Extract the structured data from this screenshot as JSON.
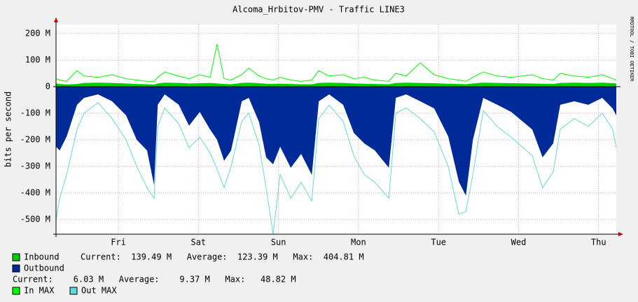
{
  "chart_data": {
    "type": "area",
    "title": "Alcoma_Hrbitov-PMV - Traffic LINE3",
    "y_label": "bits per second",
    "side_text": "RRDTOOL / TOBI OETIKER",
    "grid": true,
    "xlim": [
      0,
      168
    ],
    "xticks": [
      {
        "value": 18.7,
        "label": "Fri"
      },
      {
        "value": 42.7,
        "label": "Sat"
      },
      {
        "value": 66.7,
        "label": "Sun"
      },
      {
        "value": 90.7,
        "label": "Mon"
      },
      {
        "value": 114.7,
        "label": "Tue"
      },
      {
        "value": 138.7,
        "label": "Wed"
      },
      {
        "value": 162.7,
        "label": "Thu"
      }
    ],
    "ylim": [
      -555,
      234
    ],
    "yticks": [
      {
        "value": 200,
        "label": "200 M"
      },
      {
        "value": 100,
        "label": "100 M"
      },
      0,
      {
        "value": -100,
        "label": "-100 M"
      },
      {
        "value": -200,
        "label": "-200 M"
      },
      {
        "value": -300,
        "label": "-300 M"
      },
      {
        "value": -400,
        "label": "-400 M"
      },
      {
        "value": -500,
        "label": "-500 M"
      }
    ],
    "x": [
      0,
      1.1,
      3.2,
      6.3,
      8.4,
      12.6,
      16.8,
      21,
      24.2,
      27.3,
      29.4,
      30.5,
      32.6,
      36.8,
      39.9,
      43.1,
      46.2,
      48.3,
      50.4,
      52.5,
      55.7,
      57.8,
      60.9,
      63,
      65.1,
      67.2,
      70.4,
      73.5,
      76.7,
      78.8,
      81.9,
      86.1,
      89.3,
      92.4,
      95.6,
      99.8,
      101.9,
      105,
      109.2,
      113.4,
      117.6,
      120.8,
      122.9,
      125,
      128.1,
      132.3,
      136.5,
      142.8,
      145.9,
      149.1,
      151.2,
      155.4,
      159.6,
      163.8,
      166.9,
      168
    ],
    "series": [
      {
        "name": "Inbound",
        "style": "area",
        "color": "#00cc00",
        "values": [
          12,
          10,
          8,
          10,
          14,
          15,
          14,
          12,
          10,
          9,
          8,
          12,
          15,
          14,
          12,
          13,
          14,
          12,
          10,
          9,
          14,
          15,
          13,
          11,
          10,
          11,
          10,
          9,
          9,
          14,
          15,
          14,
          12,
          11,
          10,
          9,
          14,
          15,
          14,
          13,
          11,
          10,
          9,
          12,
          15,
          14,
          13,
          12,
          11,
          10,
          14,
          15,
          14,
          15,
          13,
          12
        ]
      },
      {
        "name": "Outbound",
        "style": "area",
        "color": "#002a97",
        "values": [
          -226,
          -240,
          -187,
          -68,
          -42,
          -29,
          -55,
          -108,
          -200,
          -240,
          -371,
          -68,
          -29,
          -68,
          -147,
          -95,
          -161,
          -200,
          -279,
          -240,
          -55,
          -42,
          -134,
          -266,
          -292,
          -226,
          -305,
          -253,
          -332,
          -55,
          -29,
          -68,
          -174,
          -213,
          -240,
          -305,
          -42,
          -29,
          -55,
          -82,
          -187,
          -358,
          -410,
          -200,
          -42,
          -68,
          -95,
          -161,
          -266,
          -213,
          -68,
          -55,
          -68,
          -42,
          -82,
          -108
        ]
      },
      {
        "name": "In MAX",
        "style": "line",
        "color": "#00ff00",
        "values": [
          30,
          25,
          20,
          60,
          40,
          35,
          45,
          30,
          25,
          20,
          20,
          35,
          55,
          40,
          30,
          45,
          35,
          160,
          30,
          25,
          45,
          70,
          40,
          30,
          25,
          35,
          25,
          20,
          25,
          60,
          40,
          45,
          30,
          35,
          25,
          20,
          50,
          40,
          90,
          45,
          30,
          25,
          20,
          35,
          55,
          40,
          35,
          45,
          30,
          25,
          50,
          40,
          35,
          45,
          30,
          25
        ]
      },
      {
        "name": "Out MAX",
        "style": "line",
        "color": "#66d9d9",
        "values": [
          -500,
          -420,
          -330,
          -160,
          -100,
          -60,
          -120,
          -200,
          -300,
          -380,
          -420,
          -150,
          -80,
          -140,
          -230,
          -190,
          -250,
          -310,
          -380,
          -300,
          -130,
          -100,
          -220,
          -380,
          -555,
          -330,
          -420,
          -360,
          -430,
          -120,
          -70,
          -130,
          -260,
          -330,
          -360,
          -420,
          -100,
          -80,
          -120,
          -170,
          -300,
          -480,
          -470,
          -330,
          -90,
          -150,
          -190,
          -260,
          -380,
          -320,
          -160,
          -120,
          -150,
          -100,
          -160,
          -230
        ]
      }
    ],
    "legend_stats": [
      "Current:  139.49 M   Average:  123.39 M   Max:  404.81 M",
      "Current:    6.03 M   Average:    9.37 M   Max:   48.82 M"
    ]
  }
}
